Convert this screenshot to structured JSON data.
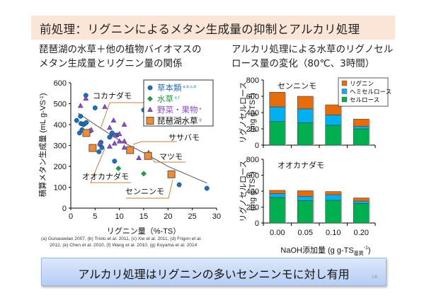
{
  "slide": {
    "title": "前処理：リグニンによるメタン生成量の抑制とアルカリ処理",
    "left_heading": [
      "琵琶湖の水草＋他の植物バイオマスの",
      "メタン生成量とリグニン量の関係"
    ],
    "right_heading": [
      "アルカリ処理による水草のリグノセル",
      "ロース量の変化（80℃、3時間）"
    ],
    "references": [
      "(a)  Gunaseelan 2007, (b) Triolo et al. 2011, (c) Xie et al. 2011, (d) Frigon et al.",
      "2012,  (e) Chen et al. 2010, (f) Wang et al. 2010, (g) Koyama et al. 2014"
    ],
    "conclusion": "アルカリ処理はリグニンの多いセンニンモに対し有用",
    "page_number": "18"
  },
  "chart_data": [
    {
      "type": "scatter",
      "title": "",
      "xlabel": "リグニン量（%-TS）",
      "ylabel": "積算メタン生成量（mL g-VS⁻¹）",
      "xlim": [
        0,
        30
      ],
      "ylim": [
        0,
        600
      ],
      "xticks": [
        "0",
        "5",
        "10",
        "15",
        "20",
        "25",
        "30"
      ],
      "yticks": [
        "0",
        "100",
        "200",
        "300",
        "400",
        "500",
        "600"
      ],
      "grid": false,
      "legend_position": "top-right",
      "series": [
        {
          "name": "草本類",
          "superscript": "a,b,c,d",
          "marker": "circle",
          "color": "#1f6fb5",
          "points": [
            [
              1.2,
              420
            ],
            [
              1.8,
              360
            ],
            [
              2.0,
              440
            ],
            [
              2.1,
              405
            ],
            [
              2.3,
              375
            ],
            [
              2.6,
              400
            ],
            [
              2.9,
              405
            ],
            [
              3.1,
              540
            ],
            [
              3.2,
              410
            ],
            [
              4.0,
              370
            ],
            [
              5.0,
              480
            ],
            [
              5.8,
              270
            ],
            [
              6.0,
              305
            ],
            [
              6.4,
              290
            ],
            [
              6.2,
              315
            ],
            [
              8.0,
              340
            ],
            [
              8.5,
              360
            ],
            [
              9.0,
              225
            ],
            [
              9.5,
              350
            ],
            [
              15.0,
              470
            ],
            [
              22.3,
              112
            ],
            [
              28.0,
              95
            ]
          ]
        },
        {
          "name": "水草",
          "superscript": "e,f",
          "marker": "diamond",
          "color": "#1d9e47",
          "points": [
            [
              9.8,
              190
            ],
            [
              15.0,
              165
            ]
          ]
        },
        {
          "name": "野菜・果物",
          "superscript": "a",
          "marker": "triangle",
          "color": "#8b4fc4",
          "points": [
            [
              2.0,
              490
            ],
            [
              3.1,
              525
            ],
            [
              4.2,
              375
            ],
            [
              6.0,
              310
            ],
            [
              7.0,
              485
            ],
            [
              8.0,
              385
            ],
            [
              8.0,
              295
            ],
            [
              8.8,
              420
            ],
            [
              9.0,
              350
            ],
            [
              9.0,
              310
            ],
            [
              10.0,
              355
            ],
            [
              10.0,
              320
            ],
            [
              11.0,
              400
            ],
            [
              11.0,
              320
            ],
            [
              11.0,
              290
            ],
            [
              14.0,
              240
            ],
            [
              16.0,
              265
            ]
          ]
        },
        {
          "name": "琵琶湖水草",
          "superscript": "g",
          "marker": "square",
          "color": "#f58a35",
          "points": [
            [
              3.2,
              360,
              "コカナダモ"
            ],
            [
              4.5,
              288,
              "オオカナダモ"
            ],
            [
              12.2,
              278,
              "ササバモ"
            ],
            [
              15.9,
              250,
              "マツモ"
            ],
            [
              20.7,
              162,
              "センニンモ"
            ]
          ]
        }
      ],
      "trendline": {
        "type": "power-like decreasing",
        "x_range": [
          1.5,
          28
        ],
        "points": [
          [
            1.5,
            455
          ],
          [
            5,
            400
          ],
          [
            10,
            325
          ],
          [
            15,
            265
          ],
          [
            20,
            200
          ],
          [
            25,
            150
          ],
          [
            28,
            120
          ]
        ]
      },
      "annotations": [
        "コカナダモ",
        "オオカナダモ",
        "ササバモ",
        "マツモ",
        "センニンモ"
      ]
    },
    {
      "type": "bar",
      "stacked": true,
      "title": "センニンモ",
      "xlabel": "NaOH添加量 (g g-TS基質⁻¹)",
      "ylabel": "リグノセルロース (mg g-TS⁻¹)",
      "categories": [
        "0.00",
        "0.05",
        "0.10",
        "0.20"
      ],
      "ylim": [
        0,
        800
      ],
      "yticks": [
        "0",
        "200",
        "400",
        "600",
        "800"
      ],
      "legend_position": "top-right",
      "series": [
        {
          "name": "セルロース",
          "color": "#00b050",
          "values": [
            290,
            275,
            245,
            200
          ]
        },
        {
          "name": "ヘミセルロース",
          "color": "#00b0f0",
          "values": [
            180,
            170,
            125,
            30
          ]
        },
        {
          "name": "リグニン",
          "color": "#e46c0a",
          "values": [
            180,
            155,
            125,
            90
          ]
        }
      ]
    },
    {
      "type": "bar",
      "stacked": true,
      "title": "オオカナダモ",
      "xlabel": "NaOH添加量 (g g-TS基質⁻¹)",
      "ylabel": "リグノセルロース (mg g-TS⁻¹)",
      "categories": [
        "0.00",
        "0.05",
        "0.10",
        "0.20"
      ],
      "ylim": [
        0,
        800
      ],
      "yticks": [
        "0",
        "200",
        "400",
        "600",
        "800"
      ],
      "series": [
        {
          "name": "セルロース",
          "color": "#00b050",
          "values": [
            320,
            280,
            285,
            245
          ]
        },
        {
          "name": "ヘミセルロース",
          "color": "#00b0f0",
          "values": [
            50,
            55,
            70,
            30
          ]
        },
        {
          "name": "リグニン",
          "color": "#e46c0a",
          "values": [
            40,
            70,
            40,
            40
          ]
        }
      ]
    }
  ],
  "bar_axis": {
    "xlabel_main": "NaOH添加量 (g g-TS",
    "xlabel_sub": "基質",
    "xlabel_sup": "-1",
    "xlabel_close": ")",
    "ylabel_main": "リグノセルロース",
    "ylabel_unit": "(mg g-TS",
    "ylabel_sup": "-1",
    "ylabel_close": ")"
  },
  "scatter_axis": {
    "ylabel_main": "積算メタン生成量 (mL g-VS",
    "ylabel_sup": "-1",
    "ylabel_close": ")"
  }
}
